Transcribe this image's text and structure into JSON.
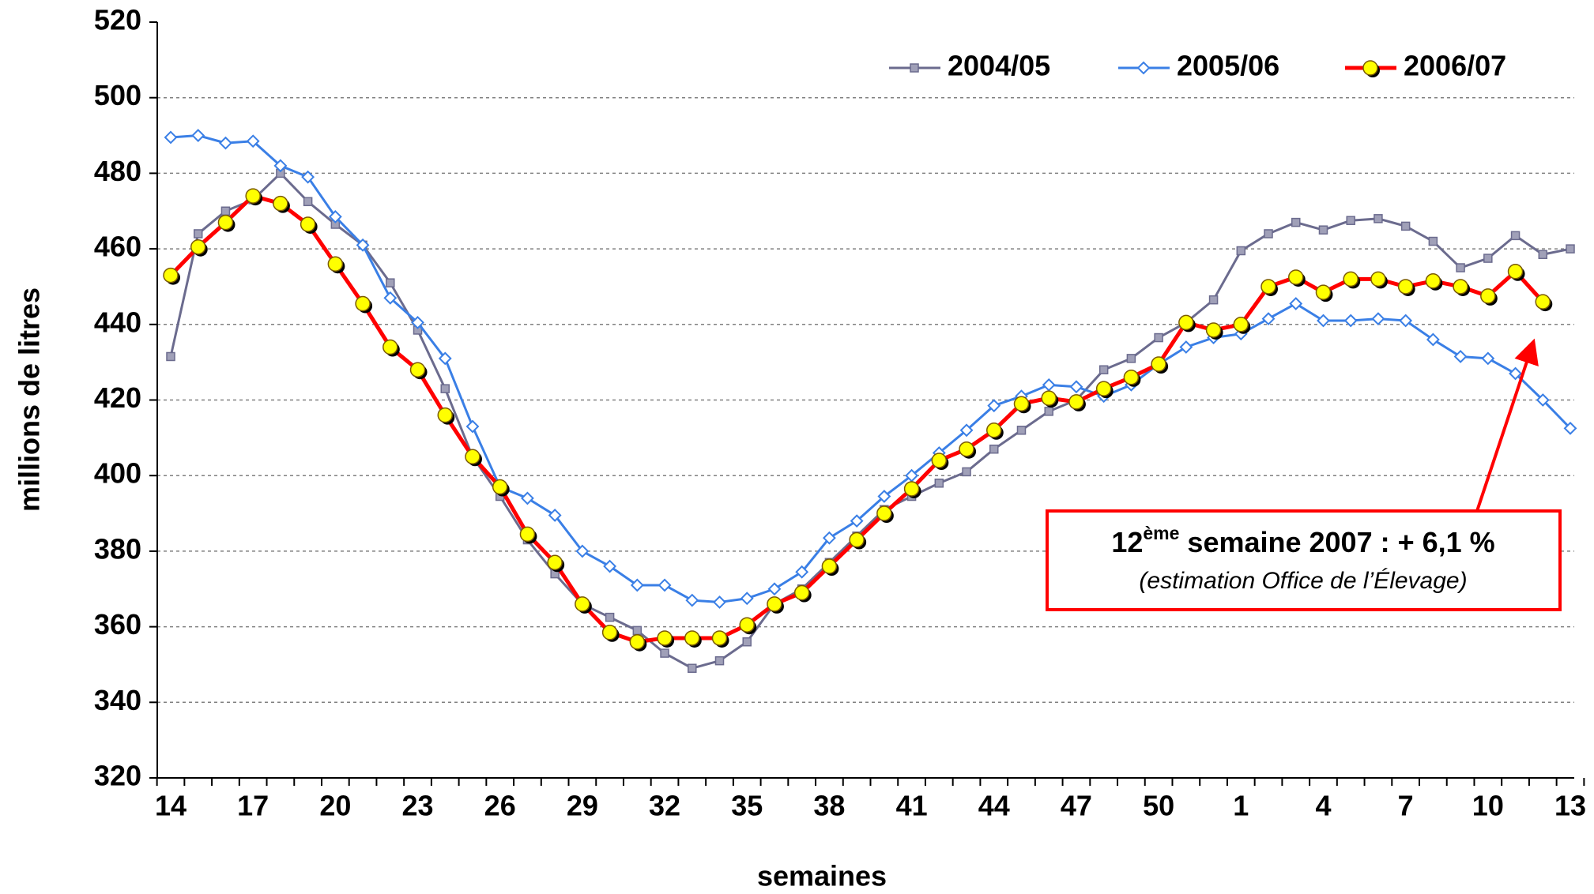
{
  "chart_data": {
    "type": "line",
    "x_label": "semaines",
    "y_label": "millions de litres",
    "categories": [
      "14",
      null,
      null,
      "17",
      null,
      null,
      "20",
      null,
      null,
      "23",
      null,
      null,
      "26",
      null,
      null,
      "29",
      null,
      null,
      "32",
      null,
      null,
      "35",
      null,
      null,
      "38",
      null,
      null,
      "41",
      null,
      null,
      "44",
      null,
      null,
      "47",
      null,
      null,
      "50",
      null,
      null,
      "1",
      null,
      null,
      "4",
      null,
      null,
      "7",
      null,
      null,
      "10",
      null,
      null,
      "13"
    ],
    "ylim": [
      320,
      520
    ],
    "yticks": [
      320,
      340,
      360,
      380,
      400,
      420,
      440,
      460,
      480,
      500,
      520
    ],
    "grid": true,
    "legend": "top-right",
    "series": [
      {
        "name": "2004/05",
        "color": "#6b6b8e",
        "values": [
          431.5,
          464,
          470,
          473,
          480,
          472.5,
          466.5,
          461,
          451,
          438.5,
          423,
          405,
          394.5,
          383,
          374,
          366,
          362.5,
          359,
          353,
          349,
          351,
          356,
          366,
          370,
          377,
          384,
          391,
          394.5,
          398,
          401,
          407,
          412,
          417,
          420,
          428,
          431,
          436.5,
          440.5,
          446.5,
          459.5,
          464,
          467,
          465,
          467.5,
          468,
          466,
          462,
          455,
          457.5,
          463.5,
          458.5,
          460
        ]
      },
      {
        "name": "2005/06",
        "color": "#3a7fe6",
        "values": [
          489.5,
          490,
          488,
          488.5,
          482,
          479,
          468.5,
          461,
          447,
          440.5,
          431,
          413,
          397,
          394,
          389.5,
          380,
          376,
          371,
          371,
          367,
          366.5,
          367.5,
          370,
          374.5,
          383.5,
          388,
          394.5,
          400,
          406,
          412,
          418.5,
          421,
          424,
          423.5,
          421,
          424,
          429.5,
          434,
          436.5,
          437.5,
          441.5,
          445.5,
          441,
          441,
          441.5,
          441,
          436,
          431.5,
          431,
          427,
          420,
          412.5
        ]
      },
      {
        "name": "2006/07",
        "color": "#ff0000",
        "values": [
          453,
          460.5,
          467,
          474,
          472,
          466.5,
          456,
          445.5,
          434,
          428,
          416,
          405,
          397,
          384.5,
          377,
          366,
          358.5,
          356,
          357,
          357,
          357,
          360.5,
          366,
          369,
          376,
          383,
          390,
          396.5,
          404,
          407,
          412,
          419,
          420.5,
          419.5,
          423,
          426,
          429.5,
          440.5,
          438.5,
          440,
          450,
          452.5,
          448.5,
          452,
          452,
          450,
          451.5,
          450,
          447.5,
          454,
          446,
          null
        ]
      }
    ],
    "annotation": {
      "number": "12",
      "superscript": "ème",
      "text": "semaine 2007 : + 6,1 %",
      "note": "(estimation Office de l’Élevage)"
    }
  }
}
